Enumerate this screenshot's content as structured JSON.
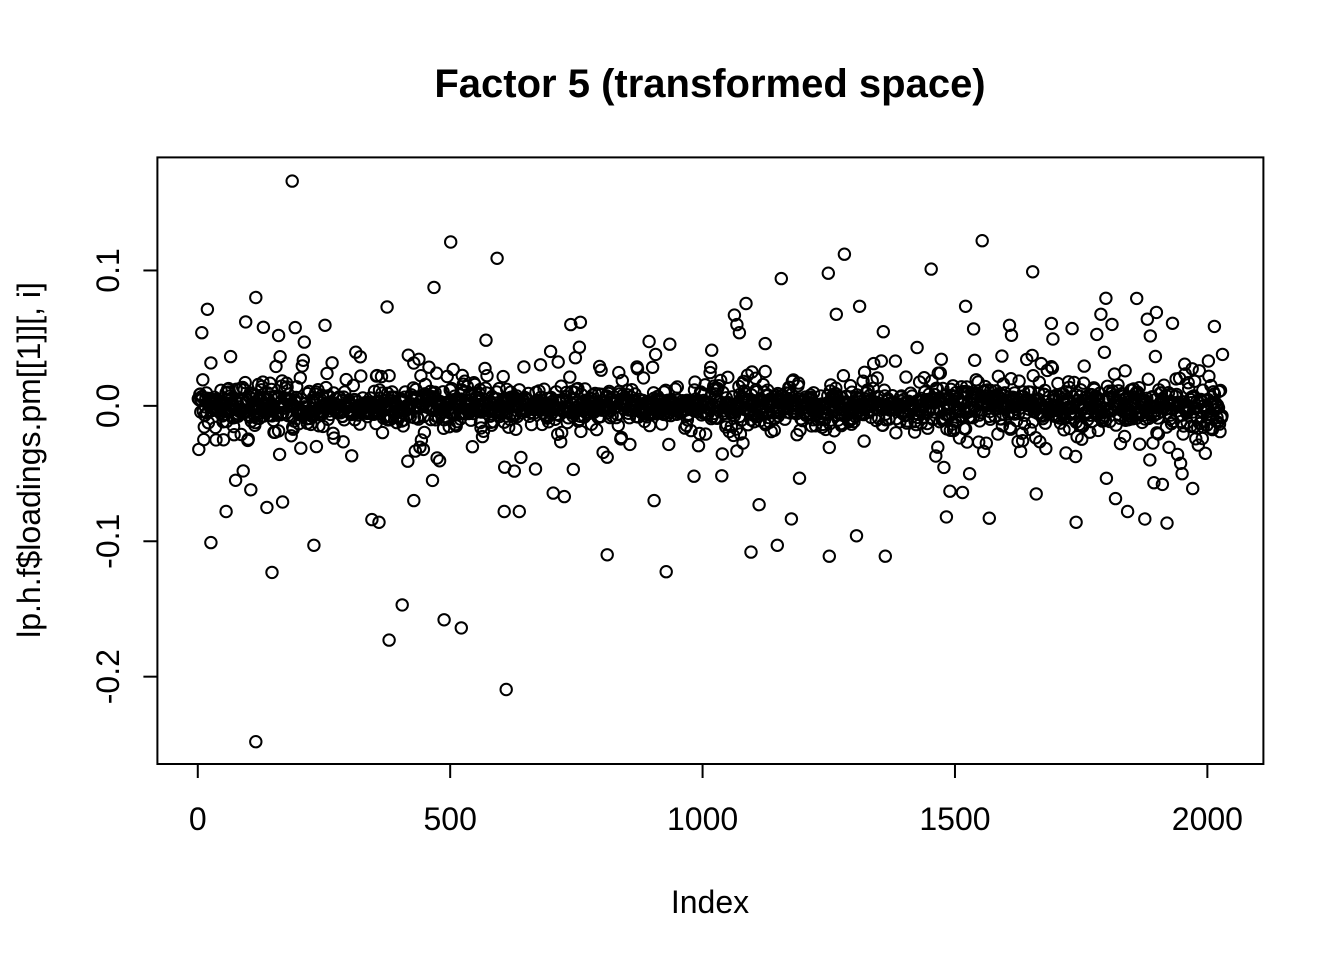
{
  "figure": {
    "background_color": "#ffffff",
    "foreground_color": "#000000"
  },
  "chart_data": {
    "type": "scatter",
    "title": "Factor 5 (transformed space)",
    "xlabel": "Index",
    "ylabel": "lp.h.f$loadings.pm[[1]][, i]",
    "marker": "open-circle",
    "grid": false,
    "legend": "none",
    "n_points": 2030,
    "x_range": [
      1,
      2030
    ],
    "xlim": [
      -80,
      2111
    ],
    "ylim": [
      -0.2645,
      0.1835
    ],
    "x_ticks": [
      {
        "value": 0,
        "label": "0"
      },
      {
        "value": 500,
        "label": "500"
      },
      {
        "value": 1000,
        "label": "1000"
      },
      {
        "value": 1500,
        "label": "1500"
      },
      {
        "value": 2000,
        "label": "2000"
      }
    ],
    "y_ticks": [
      {
        "value": -0.2,
        "label": "-0.2"
      },
      {
        "value": -0.1,
        "label": "-0.1"
      },
      {
        "value": 0.0,
        "label": "0.0"
      },
      {
        "value": 0.1,
        "label": "0.1"
      }
    ],
    "band": {
      "center": 0,
      "seed": 42,
      "clamp": 0.095,
      "mixture": [
        {
          "w": 0.62,
          "sd": 0.0055
        },
        {
          "w": 0.28,
          "sd": 0.014
        },
        {
          "w": 0.1,
          "sd": 0.028
        }
      ],
      "spread_right": {
        "start": 1200,
        "full": 1800,
        "gain": 0.3
      },
      "spread_left": {
        "start": 250,
        "gain": 0.25
      }
    },
    "outliers": [
      [
        8,
        0.054
      ],
      [
        95,
        0.062
      ],
      [
        115,
        0.08
      ],
      [
        130,
        0.058
      ],
      [
        160,
        0.052
      ],
      [
        187,
        0.166
      ],
      [
        252,
        0.0595
      ],
      [
        313,
        0.0396
      ],
      [
        375,
        0.073
      ],
      [
        468,
        0.0875
      ],
      [
        501,
        0.121
      ],
      [
        593,
        0.109
      ],
      [
        756,
        0.0433
      ],
      [
        758,
        0.0617
      ],
      [
        1063,
        0.067
      ],
      [
        1068,
        0.06
      ],
      [
        1073,
        0.054
      ],
      [
        1086,
        0.0756
      ],
      [
        1124,
        0.046
      ],
      [
        1156,
        0.094
      ],
      [
        1249,
        0.098
      ],
      [
        1265,
        0.0676
      ],
      [
        1281,
        0.112
      ],
      [
        1311,
        0.0735
      ],
      [
        1453,
        0.101
      ],
      [
        1521,
        0.0735
      ],
      [
        1554,
        0.122
      ],
      [
        1608,
        0.0595
      ],
      [
        1612,
        0.0521
      ],
      [
        1654,
        0.099
      ],
      [
        1691,
        0.0609
      ],
      [
        1781,
        0.0528
      ],
      [
        1789,
        0.0676
      ],
      [
        1860,
        0.0794
      ],
      [
        1881,
        0.064
      ],
      [
        1899,
        0.069
      ],
      [
        1931,
        0.061
      ],
      [
        2014,
        0.0587
      ],
      [
        26,
        -0.101
      ],
      [
        56,
        -0.078
      ],
      [
        75,
        -0.055
      ],
      [
        90,
        -0.048
      ],
      [
        105,
        -0.062
      ],
      [
        115,
        -0.248
      ],
      [
        137,
        -0.075
      ],
      [
        147,
        -0.123
      ],
      [
        230,
        -0.103
      ],
      [
        345,
        -0.084
      ],
      [
        359,
        -0.086
      ],
      [
        379,
        -0.173
      ],
      [
        405,
        -0.147
      ],
      [
        428,
        -0.07
      ],
      [
        488,
        -0.158
      ],
      [
        522,
        -0.164
      ],
      [
        607,
        -0.078
      ],
      [
        611,
        -0.2095
      ],
      [
        637,
        -0.078
      ],
      [
        726,
        -0.067
      ],
      [
        811,
        -0.11
      ],
      [
        904,
        -0.07
      ],
      [
        928,
        -0.1225
      ],
      [
        1096,
        -0.108
      ],
      [
        1112,
        -0.073
      ],
      [
        1148,
        -0.103
      ],
      [
        1176,
        -0.0835
      ],
      [
        1251,
        -0.111
      ],
      [
        1305,
        -0.096
      ],
      [
        1362,
        -0.111
      ],
      [
        1483,
        -0.082
      ],
      [
        1490,
        -0.063
      ],
      [
        1515,
        -0.064
      ],
      [
        1568,
        -0.083
      ],
      [
        1661,
        -0.065
      ],
      [
        1740,
        -0.086
      ],
      [
        1842,
        -0.078
      ],
      [
        1911,
        -0.058
      ],
      [
        1971,
        -0.061
      ]
    ]
  }
}
